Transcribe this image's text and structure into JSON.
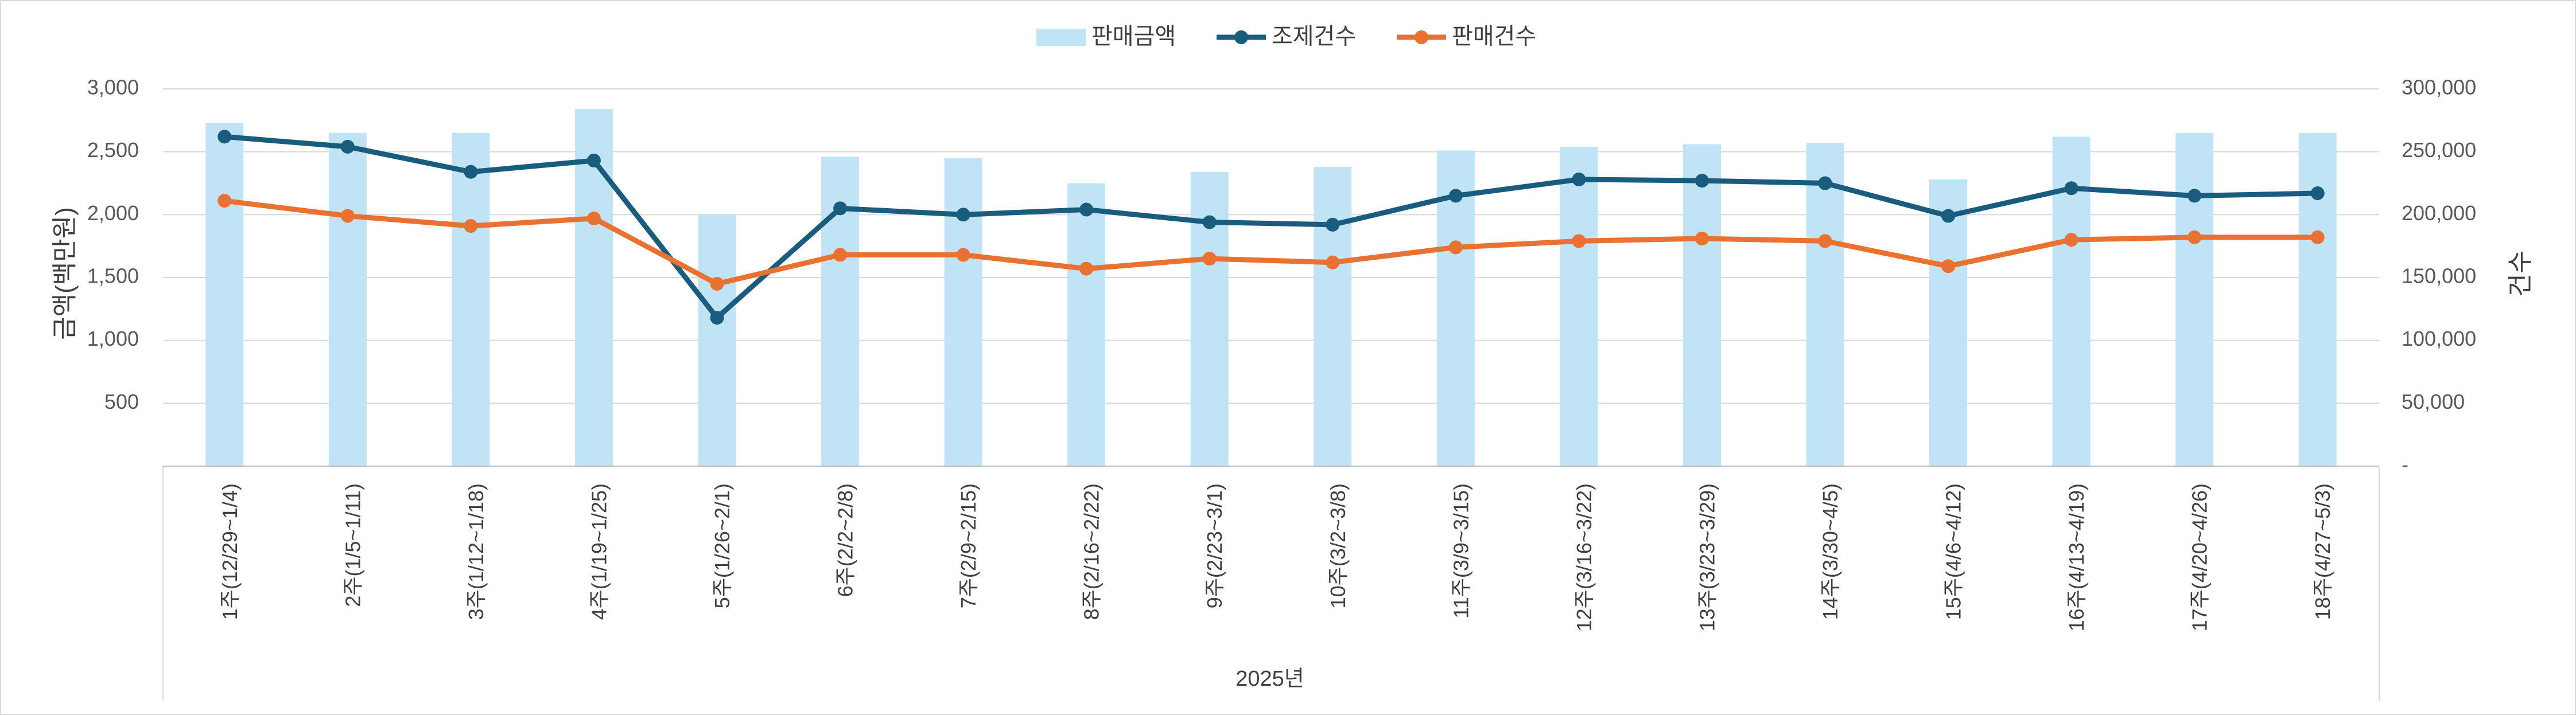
{
  "chart_data": {
    "type": "bar",
    "categories": [
      "1주(12/29~1/4)",
      "2주(1/5~1/11)",
      "3주(1/12~1/18)",
      "4주(1/19~1/25)",
      "5주(1/26~2/1)",
      "6주(2/2~2/8)",
      "7주(2/9~2/15)",
      "8주(2/16~2/22)",
      "9주(2/23~3/1)",
      "10주(3/2~3/8)",
      "11주(3/9~3/15)",
      "12주(3/16~3/22)",
      "13주(3/23~3/29)",
      "14주(3/30~4/5)",
      "15주(4/6~4/12)",
      "16주(4/13~4/19)",
      "17주(4/20~4/26)",
      "18주(4/27~5/3)"
    ],
    "xlabel": "2025년",
    "ylabel": "금액(백만원)",
    "y2label": "건수",
    "ylim": [
      0,
      3000
    ],
    "y2lim": [
      0,
      300000
    ],
    "yticks": [
      "500",
      "1,000",
      "1,500",
      "2,000",
      "2,500",
      "3,000"
    ],
    "yticks_values": [
      500,
      1000,
      1500,
      2000,
      2500,
      3000
    ],
    "y2ticks": [
      "-",
      "50,000",
      "100,000",
      "150,000",
      "200,000",
      "250,000",
      "300,000"
    ],
    "y2ticks_values": [
      0,
      50000,
      100000,
      150000,
      200000,
      250000,
      300000
    ],
    "grid": true,
    "legend_position": "top-center",
    "series": [
      {
        "name": "판매금액",
        "type": "bar",
        "axis": "left",
        "color": "#C0E4F5",
        "values": [
          2730,
          2650,
          2650,
          2840,
          2000,
          2460,
          2450,
          2250,
          2340,
          2380,
          2510,
          2540,
          2560,
          2570,
          2280,
          2620,
          2650,
          2650
        ]
      },
      {
        "name": "조제건수",
        "type": "line",
        "axis": "right",
        "color": "#1A5C7E",
        "values": [
          262000,
          254000,
          234000,
          243000,
          118000,
          205000,
          200000,
          204000,
          194000,
          192000,
          215000,
          228000,
          227000,
          225000,
          199000,
          221000,
          215000,
          217000
        ]
      },
      {
        "name": "판매건수",
        "type": "line",
        "axis": "right",
        "color": "#E97132",
        "values": [
          211000,
          199000,
          191000,
          197000,
          145000,
          168000,
          168000,
          157000,
          165000,
          162000,
          174000,
          179000,
          181000,
          179000,
          159000,
          180000,
          182000,
          182000
        ]
      }
    ]
  }
}
